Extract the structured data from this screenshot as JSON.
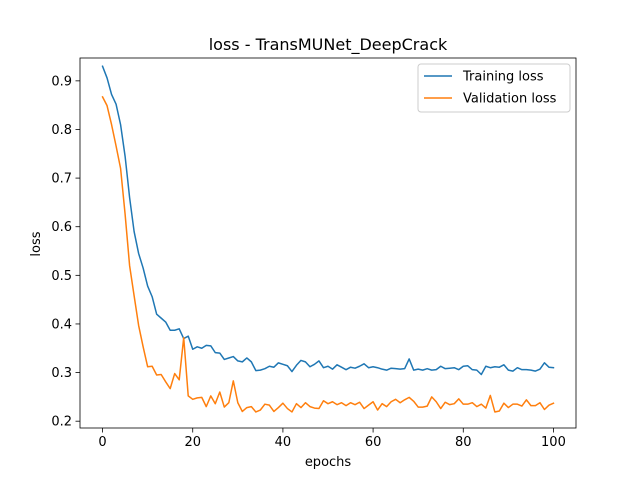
{
  "chart_data": {
    "type": "line",
    "title": "loss - TransMUNet_DeepCrack",
    "xlabel": "epochs",
    "ylabel": "loss",
    "xlim": [
      -5,
      105
    ],
    "ylim": [
      0.186,
      0.947
    ],
    "xticks": [
      0,
      20,
      40,
      60,
      80,
      100
    ],
    "yticks": [
      0.2,
      0.3,
      0.4,
      0.5,
      0.6,
      0.7,
      0.8,
      0.9
    ],
    "grid": false,
    "legend_position": "upper right",
    "x": [
      0,
      1,
      2,
      3,
      4,
      5,
      6,
      7,
      8,
      9,
      10,
      11,
      12,
      13,
      14,
      15,
      16,
      17,
      18,
      19,
      20,
      21,
      22,
      23,
      24,
      25,
      26,
      27,
      28,
      29,
      30,
      31,
      32,
      33,
      34,
      35,
      36,
      37,
      38,
      39,
      40,
      41,
      42,
      43,
      44,
      45,
      46,
      47,
      48,
      49,
      50,
      51,
      52,
      53,
      54,
      55,
      56,
      57,
      58,
      59,
      60,
      61,
      62,
      63,
      64,
      65,
      66,
      67,
      68,
      69,
      70,
      71,
      72,
      73,
      74,
      75,
      76,
      77,
      78,
      79,
      80,
      81,
      82,
      83,
      84,
      85,
      86,
      87,
      88,
      89,
      90,
      91,
      92,
      93,
      94,
      95,
      96,
      97,
      98,
      99,
      100
    ],
    "series": [
      {
        "name": "Training loss",
        "color": "#1f77b4",
        "values": [
          0.93,
          0.906,
          0.872,
          0.852,
          0.81,
          0.745,
          0.66,
          0.59,
          0.545,
          0.515,
          0.478,
          0.456,
          0.42,
          0.412,
          0.404,
          0.387,
          0.387,
          0.39,
          0.37,
          0.375,
          0.348,
          0.353,
          0.35,
          0.356,
          0.355,
          0.341,
          0.34,
          0.327,
          0.33,
          0.333,
          0.324,
          0.322,
          0.33,
          0.322,
          0.304,
          0.305,
          0.308,
          0.313,
          0.311,
          0.32,
          0.317,
          0.314,
          0.302,
          0.315,
          0.325,
          0.322,
          0.312,
          0.317,
          0.324,
          0.31,
          0.313,
          0.307,
          0.316,
          0.311,
          0.306,
          0.311,
          0.309,
          0.313,
          0.318,
          0.31,
          0.312,
          0.31,
          0.307,
          0.305,
          0.309,
          0.308,
          0.307,
          0.308,
          0.328,
          0.305,
          0.307,
          0.305,
          0.308,
          0.305,
          0.306,
          0.313,
          0.308,
          0.309,
          0.31,
          0.306,
          0.313,
          0.314,
          0.306,
          0.305,
          0.296,
          0.313,
          0.31,
          0.312,
          0.311,
          0.316,
          0.305,
          0.303,
          0.31,
          0.306,
          0.306,
          0.305,
          0.303,
          0.307,
          0.32,
          0.311,
          0.31
        ]
      },
      {
        "name": "Validation loss",
        "color": "#ff7f0e",
        "values": [
          0.867,
          0.849,
          0.81,
          0.766,
          0.72,
          0.626,
          0.52,
          0.458,
          0.397,
          0.353,
          0.312,
          0.313,
          0.295,
          0.296,
          0.281,
          0.267,
          0.298,
          0.285,
          0.372,
          0.252,
          0.245,
          0.248,
          0.249,
          0.23,
          0.252,
          0.236,
          0.26,
          0.229,
          0.238,
          0.283,
          0.238,
          0.22,
          0.228,
          0.23,
          0.219,
          0.223,
          0.235,
          0.233,
          0.22,
          0.228,
          0.237,
          0.226,
          0.219,
          0.236,
          0.228,
          0.238,
          0.23,
          0.227,
          0.226,
          0.242,
          0.236,
          0.24,
          0.234,
          0.238,
          0.232,
          0.238,
          0.234,
          0.239,
          0.226,
          0.233,
          0.24,
          0.223,
          0.236,
          0.23,
          0.24,
          0.245,
          0.238,
          0.244,
          0.249,
          0.241,
          0.229,
          0.229,
          0.231,
          0.25,
          0.24,
          0.226,
          0.239,
          0.234,
          0.236,
          0.246,
          0.235,
          0.235,
          0.238,
          0.23,
          0.235,
          0.227,
          0.253,
          0.219,
          0.221,
          0.237,
          0.228,
          0.235,
          0.235,
          0.231,
          0.244,
          0.232,
          0.232,
          0.238,
          0.224,
          0.233,
          0.237
        ]
      }
    ]
  }
}
